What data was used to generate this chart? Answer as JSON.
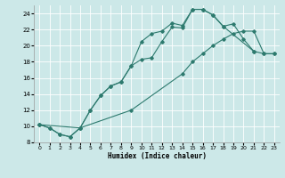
{
  "xlabel": "Humidex (Indice chaleur)",
  "bg_color": "#cce8e8",
  "grid_color": "#ffffff",
  "line_color": "#2d7a6e",
  "xlim": [
    -0.5,
    23.5
  ],
  "ylim": [
    8,
    25
  ],
  "xticks": [
    0,
    1,
    2,
    3,
    4,
    5,
    6,
    7,
    8,
    9,
    10,
    11,
    12,
    13,
    14,
    15,
    16,
    17,
    18,
    19,
    20,
    21,
    22,
    23
  ],
  "yticks": [
    8,
    10,
    12,
    14,
    16,
    18,
    20,
    22,
    24
  ],
  "curve1_x": [
    0,
    1,
    2,
    3,
    4,
    5,
    6,
    7,
    8,
    9,
    10,
    11,
    12,
    13,
    14,
    15,
    16,
    17,
    18,
    19,
    20,
    21
  ],
  "curve1_y": [
    10.2,
    9.8,
    9.0,
    8.7,
    9.8,
    12.0,
    13.8,
    15.0,
    15.5,
    17.5,
    20.5,
    21.5,
    21.8,
    22.8,
    22.5,
    24.5,
    24.5,
    23.8,
    22.4,
    22.7,
    20.8,
    19.3
  ],
  "curve2_x": [
    0,
    1,
    2,
    3,
    4,
    5,
    6,
    7,
    8,
    9,
    10,
    11,
    12,
    13,
    14,
    15,
    16,
    17,
    18,
    21,
    22,
    23
  ],
  "curve2_y": [
    10.2,
    9.8,
    9.0,
    8.7,
    9.8,
    12.0,
    13.8,
    15.0,
    15.5,
    17.5,
    18.3,
    18.5,
    20.5,
    22.3,
    22.2,
    24.5,
    24.5,
    23.8,
    22.4,
    19.3,
    19.0,
    19.0
  ],
  "curve3_x": [
    0,
    4,
    9,
    14,
    15,
    16,
    17,
    18,
    19,
    20,
    21,
    22,
    23
  ],
  "curve3_y": [
    10.2,
    9.8,
    12.0,
    16.5,
    18.0,
    19.0,
    20.0,
    20.8,
    21.5,
    21.8,
    21.8,
    19.0,
    19.0
  ]
}
